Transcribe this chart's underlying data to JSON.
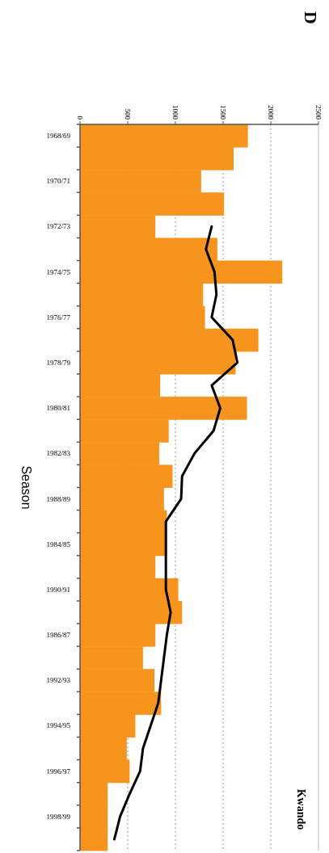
{
  "chart_data": {
    "type": "bar",
    "orientation": "horizontal",
    "title": "Kwando",
    "ylabel": "Season",
    "annotations": [
      "D"
    ],
    "categories": [
      "1968/69",
      null,
      "1970/71",
      null,
      "1972/73",
      null,
      "1974/75",
      null,
      "1976/77",
      null,
      "1978/79",
      null,
      "1980/81",
      null,
      "1982/83",
      null,
      "1988/89",
      null,
      "1984/85",
      null,
      "1990/91",
      null,
      "1986/87",
      null,
      "1992/93",
      null,
      "1994/95",
      null,
      "1996/97",
      null,
      "1998/99",
      null
    ],
    "series": [
      {
        "color": "#f7941d",
        "values": [
          1760,
          1610,
          1270,
          1510,
          790,
          1440,
          2120,
          1290,
          1310,
          1870,
          1630,
          840,
          1750,
          930,
          830,
          970,
          880,
          910,
          910,
          790,
          1030,
          1070,
          790,
          660,
          780,
          850,
          580,
          490,
          520,
          290,
          290,
          290
        ]
      },
      {
        "type": "line",
        "color": "#000000",
        "values": [
          null,
          null,
          null,
          null,
          1380,
          1320,
          1410,
          1430,
          1380,
          1600,
          1650,
          1380,
          1470,
          1400,
          1200,
          1070,
          1060,
          900,
          900,
          900,
          900,
          950,
          910,
          880,
          850,
          820,
          740,
          660,
          630,
          520,
          420,
          360
        ]
      }
    ],
    "xlim": [
      0,
      2500
    ],
    "xticks": [
      0,
      500,
      1000,
      1500,
      2000,
      2500
    ],
    "grid": "x"
  }
}
